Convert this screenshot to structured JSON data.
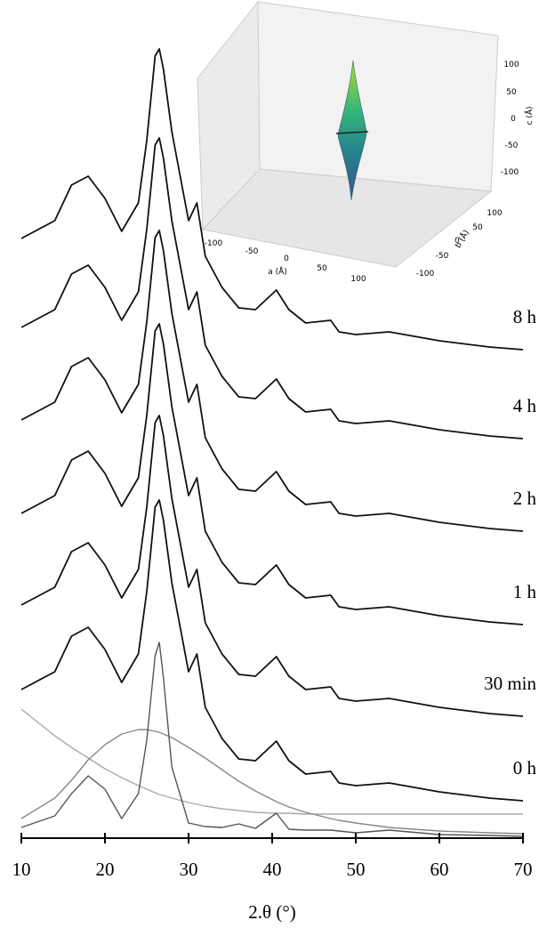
{
  "chart_data": {
    "type": "line",
    "xlabel": "2.θ (°)",
    "x": [
      10,
      14,
      16,
      18,
      20,
      22,
      24,
      25,
      26,
      26.5,
      27,
      28,
      30,
      31,
      32,
      34,
      36,
      38,
      40.5,
      42,
      44,
      47,
      48,
      50,
      54,
      60,
      66,
      70
    ],
    "xlim": [
      10,
      70
    ],
    "xticks": [
      10,
      20,
      30,
      40,
      50,
      60,
      70
    ],
    "ylim": [
      0,
      90
    ],
    "series": [
      {
        "label": "8 h",
        "color": "#111111",
        "values": [
          67.4,
          69.4,
          73.4,
          74.4,
          71.9,
          68.2,
          71.4,
          78.4,
          87.9,
          88.7,
          86.4,
          79.4,
          69.4,
          71.4,
          65.4,
          61.9,
          59.6,
          59.4,
          61.6,
          59.4,
          57.9,
          58.2,
          56.9,
          56.6,
          56.9,
          55.9,
          55.2,
          54.9
        ]
      },
      {
        "label": "4 h",
        "color": "#111111",
        "values": [
          57.4,
          59.4,
          63.4,
          64.4,
          61.9,
          58.2,
          61.4,
          68.4,
          77.9,
          78.7,
          76.4,
          69.4,
          59.4,
          61.4,
          55.4,
          51.9,
          49.6,
          49.4,
          51.6,
          49.4,
          47.9,
          48.2,
          46.9,
          46.6,
          46.9,
          45.9,
          45.2,
          44.9
        ]
      },
      {
        "label": "2 h",
        "color": "#111111",
        "values": [
          47,
          49,
          53,
          54,
          51.5,
          47.8,
          51,
          58,
          67.5,
          68.3,
          66,
          59,
          49,
          51,
          45,
          41.5,
          39.2,
          39,
          41.2,
          39,
          37.5,
          37.8,
          36.5,
          36.2,
          36.5,
          35.5,
          34.8,
          34.5
        ]
      },
      {
        "label": "1 h",
        "color": "#111111",
        "values": [
          36.5,
          38.5,
          42.5,
          43.5,
          41,
          37.3,
          40.5,
          47.5,
          57,
          57.8,
          55.5,
          48.5,
          38.5,
          40.5,
          34.5,
          31,
          28.7,
          28.5,
          30.7,
          28.5,
          27,
          27.3,
          26,
          25.7,
          26,
          25,
          24.3,
          24
        ]
      },
      {
        "label": "30 min",
        "color": "#111111",
        "values": [
          26.2,
          28.2,
          32.2,
          33.2,
          30.7,
          27,
          30.2,
          37.2,
          46.7,
          47.5,
          45.2,
          38.2,
          28.2,
          30.2,
          24.2,
          20.7,
          18.4,
          18.2,
          20.4,
          18.2,
          16.7,
          17,
          15.7,
          15.4,
          15.7,
          14.7,
          14,
          13.7
        ]
      },
      {
        "label": "0 h",
        "color": "#111111",
        "values": [
          16.7,
          18.7,
          22.7,
          23.7,
          21.2,
          17.5,
          20.7,
          27.7,
          37.2,
          38,
          35.7,
          28.7,
          18.7,
          20.7,
          14.7,
          11.2,
          8.9,
          8.7,
          10.9,
          8.7,
          7.2,
          7.5,
          6.2,
          5.9,
          6.2,
          5.2,
          4.5,
          4.2
        ]
      },
      {
        "color": "#aaaaaa",
        "values": [
          14.5,
          11.5,
          10.2,
          9,
          7.8,
          6.8,
          5.9,
          5.5,
          5.1,
          4.9,
          4.8,
          4.5,
          4,
          3.8,
          3.6,
          3.3,
          3.1,
          2.9,
          2.8,
          2.8,
          2.7,
          2.7,
          2.7,
          2.7,
          2.7,
          2.7,
          2.7,
          2.7
        ]
      },
      {
        "color": "#888888",
        "values": [
          2.2,
          4.5,
          6.5,
          8.8,
          10.5,
          11.7,
          12.2,
          12.2,
          12,
          11.9,
          11.7,
          11.3,
          10.2,
          9.6,
          9,
          7.7,
          6.4,
          5.3,
          4.1,
          3.5,
          2.9,
          2.2,
          2,
          1.7,
          1.2,
          0.8,
          0.6,
          0.5
        ]
      },
      {
        "color": "#555555",
        "values": [
          1.2,
          2.5,
          5,
          7,
          5.5,
          2.2,
          5,
          11,
          20.5,
          22,
          18,
          8,
          1.7,
          1.5,
          1.3,
          1.2,
          1.6,
          1.1,
          2.8,
          1,
          0.9,
          0.9,
          0.8,
          0.6,
          0.9,
          0.4,
          0.3,
          0.2
        ]
      }
    ],
    "inset": {
      "type": "surface3d",
      "xlabel": "a (Å)",
      "ylabel": "b (Å)",
      "zlabel": "c (Å)",
      "xticks": [
        -100,
        -50,
        0,
        50,
        100
      ],
      "yticks": [
        -100,
        -50,
        0,
        50,
        100
      ],
      "zticks": [
        -100,
        -50,
        0,
        50,
        100
      ]
    }
  }
}
